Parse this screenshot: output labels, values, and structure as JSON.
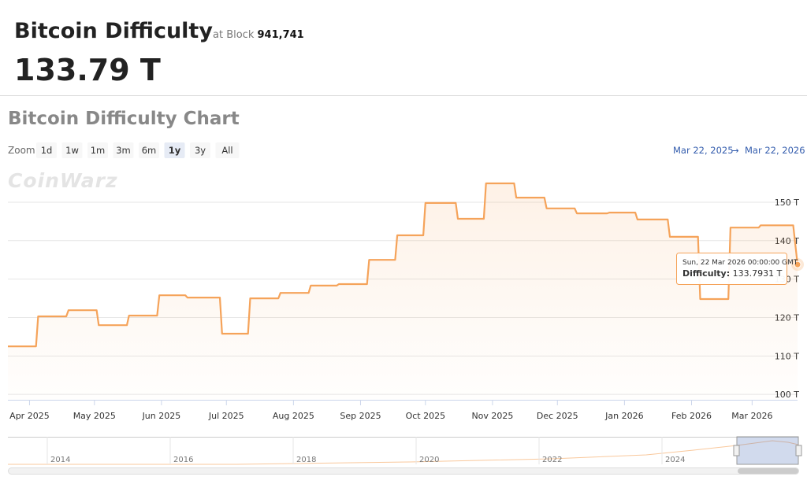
{
  "header": {
    "title": "Bitcoin Difficulty",
    "block_prefix": "at Block",
    "block": "941,741",
    "value": "133.79 T"
  },
  "chart_heading": "Bitcoin Difficulty Chart",
  "zoom": {
    "label": "Zoom",
    "buttons": [
      "1d",
      "1w",
      "1m",
      "3m",
      "6m",
      "1y",
      "3y",
      "All"
    ],
    "selected": 5
  },
  "range": {
    "from": "Mar 22, 2025",
    "arrow": "→",
    "to": "Mar 22, 2026"
  },
  "watermark": "CoinWarz",
  "tooltip": {
    "date": "Sun, 22 Mar 2026 00:00:00 GMT",
    "label": "Difficulty:",
    "value": "133.7931 T"
  },
  "navigator": {
    "years": [
      "2014",
      "2016",
      "2018",
      "2020",
      "2022",
      "2024"
    ]
  },
  "chart_data": {
    "type": "line",
    "step": true,
    "color": "#f5a35a",
    "x": [
      "2025-03-22",
      "2025-04-04",
      "2025-04-05",
      "2025-04-18",
      "2025-04-19",
      "2025-05-02",
      "2025-05-03",
      "2025-05-16",
      "2025-05-17",
      "2025-05-30",
      "2025-05-31",
      "2025-06-12",
      "2025-06-13",
      "2025-06-28",
      "2025-06-29",
      "2025-07-11",
      "2025-07-12",
      "2025-07-25",
      "2025-07-26",
      "2025-08-08",
      "2025-08-09",
      "2025-08-21",
      "2025-08-22",
      "2025-09-04",
      "2025-09-05",
      "2025-09-17",
      "2025-09-18",
      "2025-09-30",
      "2025-10-01",
      "2025-10-15",
      "2025-10-16",
      "2025-10-28",
      "2025-10-29",
      "2025-11-11",
      "2025-11-12",
      "2025-11-25",
      "2025-11-26",
      "2025-12-09",
      "2025-12-10",
      "2025-12-24",
      "2025-12-25",
      "2026-01-06",
      "2026-01-07",
      "2026-01-21",
      "2026-01-22",
      "2026-02-04",
      "2026-02-05",
      "2026-02-18",
      "2026-02-19",
      "2026-03-04",
      "2026-03-05",
      "2026-03-20",
      "2026-03-22"
    ],
    "values": [
      112.5,
      112.5,
      120.3,
      120.3,
      121.9,
      121.9,
      118.0,
      118.0,
      120.5,
      120.5,
      125.8,
      125.8,
      125.2,
      125.2,
      115.8,
      115.8,
      125.0,
      125.0,
      126.4,
      126.4,
      128.3,
      128.3,
      128.7,
      128.7,
      135.0,
      135.0,
      141.4,
      141.4,
      149.8,
      149.8,
      145.7,
      145.7,
      154.9,
      154.9,
      151.2,
      151.2,
      148.4,
      148.4,
      147.1,
      147.1,
      147.3,
      147.3,
      145.5,
      145.5,
      141.0,
      141.0,
      124.8,
      124.8,
      143.4,
      143.4,
      144.0,
      144.0,
      133.7931
    ],
    "xlim": [
      "2025-03-22",
      "2026-03-22"
    ],
    "xticks": [
      {
        "value": "2025-04-01",
        "label": "Apr 2025"
      },
      {
        "value": "2025-05-01",
        "label": "May 2025"
      },
      {
        "value": "2025-06-01",
        "label": "Jun 2025"
      },
      {
        "value": "2025-07-01",
        "label": "Jul 2025"
      },
      {
        "value": "2025-08-01",
        "label": "Aug 2025"
      },
      {
        "value": "2025-09-01",
        "label": "Sep 2025"
      },
      {
        "value": "2025-10-01",
        "label": "Oct 2025"
      },
      {
        "value": "2025-11-01",
        "label": "Nov 2025"
      },
      {
        "value": "2025-12-01",
        "label": "Dec 2025"
      },
      {
        "value": "2026-01-01",
        "label": "Jan 2026"
      },
      {
        "value": "2026-02-01",
        "label": "Feb 2026"
      },
      {
        "value": "2026-03-01",
        "label": "Mar 2026"
      }
    ],
    "ylim": [
      98.6,
      159
    ],
    "yticks": [
      {
        "value": 100,
        "label": "100 T"
      },
      {
        "value": 110,
        "label": "110 T"
      },
      {
        "value": 120,
        "label": "120 T"
      },
      {
        "value": 130,
        "label": "130 T"
      },
      {
        "value": 140,
        "label": "140 T"
      },
      {
        "value": 150,
        "label": "150 T"
      }
    ],
    "grid": true
  }
}
